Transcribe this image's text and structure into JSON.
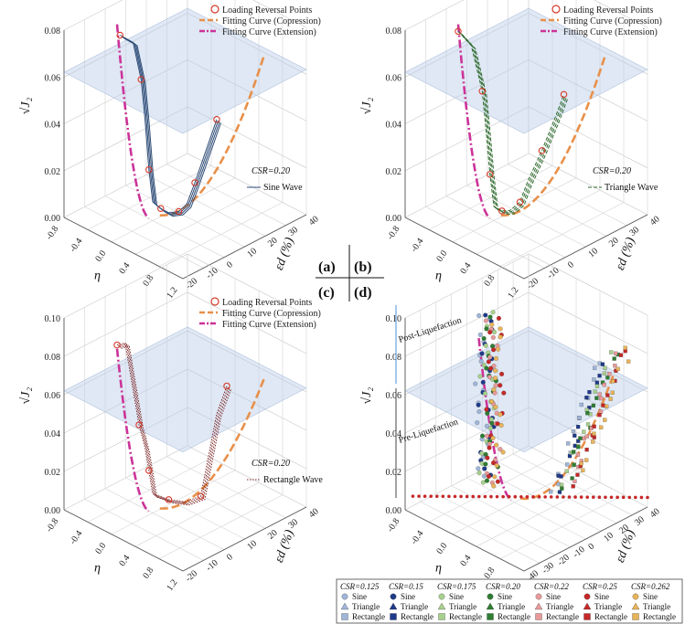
{
  "figure": {
    "panel_labels": [
      "(a)",
      "(b)",
      "(c)",
      "(d)"
    ],
    "legend_top": {
      "reversal": "Loading Reversal Points",
      "compression": "Fitting Curve (Copression)",
      "extension": "Fitting Curve (Extension)"
    },
    "colors": {
      "compression": "#e8904a",
      "extension": "#cc3399",
      "reversal": "#d63a2a",
      "plane": "#b8cbe6",
      "sine": "#2f4d78",
      "triangle": "#2f6b2f",
      "rectangle": "#7a1f1f"
    },
    "axis_titles": {
      "z": "√J₂",
      "eta": "η",
      "eps": "εd (%)"
    },
    "bottom_legend": {
      "groups": [
        {
          "csr": "0.125",
          "color": "#9fb6d8"
        },
        {
          "csr": "0.15",
          "color": "#1f3a8a"
        },
        {
          "csr": "0.175",
          "color": "#a8d08d"
        },
        {
          "csr": "0.20",
          "color": "#2e7d32"
        },
        {
          "csr": "0.22",
          "color": "#e89a9a"
        },
        {
          "csr": "0.25",
          "color": "#c62828"
        },
        {
          "csr": "0.262",
          "color": "#e8b45a"
        }
      ],
      "rows": [
        "Sine",
        "Triangle",
        "Rectangle"
      ],
      "csr_prefix": "CSR",
      "csr_sep": "="
    }
  },
  "chart_data": [
    {
      "type": "line",
      "panel": "(a)",
      "zlim": [
        0,
        0.08
      ],
      "zticks": [
        "0.00",
        "0.02",
        "0.04",
        "0.06",
        "0.08"
      ],
      "eta_ticks": [
        "-0.8",
        "-0.4",
        "0.0",
        "0.4",
        "0.8",
        "1.2"
      ],
      "eps_ticks": [
        "-20",
        "-10",
        "0",
        "10",
        "20",
        "30",
        "40"
      ],
      "annotation": {
        "csr": "CSR=0.20",
        "wave": "Sine Wave"
      },
      "series": [
        {
          "name": "Sine Wave",
          "eta": [
            -0.55,
            -0.4,
            -0.3,
            -0.2,
            -0.1,
            0.0,
            0.1,
            0.2,
            0.3,
            0.4,
            0.5,
            0.65,
            0.8
          ],
          "eps": [
            0,
            2,
            3,
            2,
            1,
            0,
            1,
            2,
            4,
            5,
            6,
            7,
            8
          ],
          "z": [
            0.072,
            0.07,
            0.055,
            0.04,
            0.02,
            0.008,
            0.006,
            0.005,
            0.006,
            0.01,
            0.02,
            0.035,
            0.05
          ]
        }
      ]
    },
    {
      "type": "line",
      "panel": "(b)",
      "zlim": [
        0,
        0.08
      ],
      "zticks": [
        "0.00",
        "0.02",
        "0.04",
        "0.06",
        "0.08"
      ],
      "eta_ticks": [
        "-0.8",
        "-0.4",
        "0.0",
        "0.4",
        "0.8",
        "1.2"
      ],
      "eps_ticks": [
        "-20",
        "-10",
        "0",
        "10",
        "20",
        "30",
        "40"
      ],
      "annotation": {
        "csr": "CSR=0.20",
        "wave": "Triangle Wave"
      },
      "series": [
        {
          "name": "Triangle Wave",
          "eta": [
            -0.6,
            -0.45,
            -0.3,
            -0.2,
            -0.1,
            0.0,
            0.1,
            0.2,
            0.3,
            0.4,
            0.6,
            0.8,
            0.9
          ],
          "eps": [
            0,
            2,
            3,
            2,
            1,
            0,
            1,
            2,
            4,
            5,
            6,
            7,
            8
          ],
          "z": [
            0.073,
            0.068,
            0.05,
            0.035,
            0.018,
            0.006,
            0.005,
            0.006,
            0.01,
            0.02,
            0.035,
            0.052,
            0.062
          ]
        }
      ]
    },
    {
      "type": "line",
      "panel": "(c)",
      "zlim": [
        0,
        0.1
      ],
      "zticks": [
        "0.00",
        "0.02",
        "0.04",
        "0.06",
        "0.08",
        "0.10"
      ],
      "eta_ticks": [
        "-0.8",
        "-0.4",
        "0.0",
        "0.4",
        "0.8",
        "1.2"
      ],
      "eps_ticks": [
        "-20",
        "-10",
        "0",
        "10",
        "20",
        "30",
        "40"
      ],
      "annotation": {
        "csr": "CSR=0.20",
        "wave": "Rectangle Wave"
      },
      "series": [
        {
          "name": "Rectangle Wave",
          "eta": [
            -0.6,
            -0.5,
            -0.3,
            -0.2,
            -0.1,
            0.0,
            0.2,
            0.4,
            0.6,
            0.8,
            0.9
          ],
          "eps": [
            0,
            1,
            2,
            2,
            1,
            0,
            2,
            4,
            6,
            8,
            10
          ],
          "z": [
            0.078,
            0.08,
            0.04,
            0.03,
            0.02,
            0.01,
            0.009,
            0.01,
            0.015,
            0.06,
            0.075
          ]
        }
      ]
    },
    {
      "type": "scatter",
      "panel": "(d)",
      "zlim": [
        0,
        0.1
      ],
      "zticks": [
        "0.00",
        "0.02",
        "0.04",
        "0.06",
        "0.08",
        "0.10"
      ],
      "eta_ticks": [
        "-0.8",
        "-0.4",
        "0.0",
        "0.4",
        "0.8",
        "1.2"
      ],
      "eps_ticks": [
        "-40",
        "-30",
        "-20",
        "-10",
        "0",
        "10",
        "20",
        "30",
        "40"
      ],
      "annotations": {
        "post": "Post-Liquefaction",
        "pre": "Pre-Liquefaction"
      }
    }
  ]
}
